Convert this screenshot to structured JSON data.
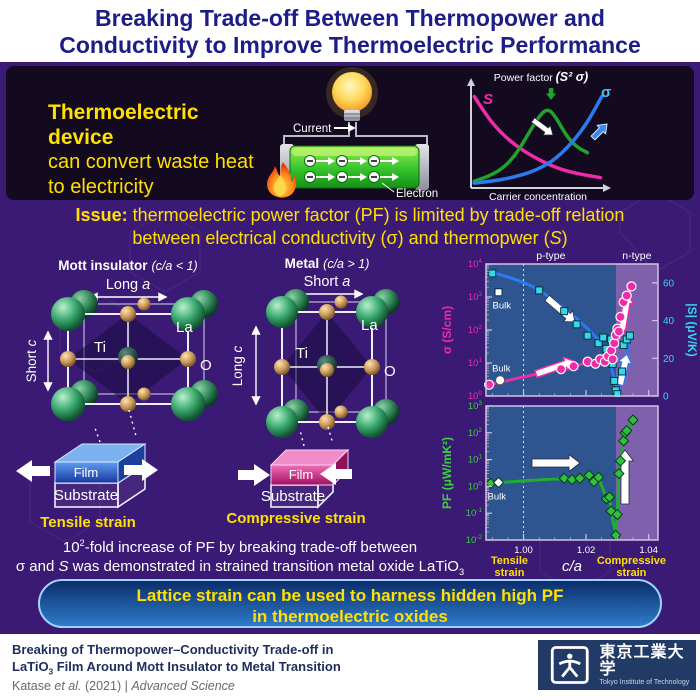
{
  "header": {
    "title_line1": "Breaking Trade-off Between Thermopower and",
    "title_line2": "Conductivity to Improve Thermoelectric Performance"
  },
  "device_panel": {
    "headline_bold": "Thermoelectric device",
    "headline_line2": "can convert waste heat",
    "headline_line3": "to electricity",
    "current_label": "Current",
    "plus_label": "+",
    "electron_label": "Electron"
  },
  "issue": {
    "label_bold": "Issue:",
    "line1_rest": " thermoelectric power factor (PF) is limited by trade-off relation",
    "line2_pre": "between electrical conductivity (σ) and thermopwer (",
    "line2_s": "S",
    "line2_post": ")"
  },
  "crystals": {
    "mott": {
      "title_bold": "Mott insulator",
      "title_paren": "(c/a < 1)",
      "a_pre": "Long ",
      "a_it": "a",
      "c_pre": "Short ",
      "c_it": "c",
      "la": "La",
      "ti": "Ti",
      "o": "O"
    },
    "metal": {
      "title_bold": "Metal",
      "title_paren": "(c/a > 1)",
      "a_pre": "Short ",
      "a_it": "a",
      "c_pre": "Long ",
      "c_it": "c",
      "la": "La",
      "ti": "Ti",
      "o": "O"
    }
  },
  "films": {
    "tensile": {
      "film": "Film",
      "substrate": "Substrate",
      "caption": "Tensile strain"
    },
    "compressive": {
      "film": "Film",
      "substrate": "Substrate",
      "caption": "Compressive strain"
    }
  },
  "pf_statement": {
    "l1_base": "10",
    "l1_sup": "2",
    "l1_rest": "-fold increase of PF by breaking trade-off between",
    "l2_pre": "σ and ",
    "l2_s": "S",
    "l2_mid": " was demonstrated in strained transition metal oxide LaTiO",
    "l2_sub": "3"
  },
  "banner": {
    "line1": "Lattice strain can be used to harness hidden high PF",
    "line2": "in thermoelectric oxides"
  },
  "footer": {
    "paper_line1": "Breaking of Thermopower–Conductivity Trade-off in",
    "paper_line2_pre": "LaTiO",
    "paper_line2_sub": "3",
    "paper_line2_post": " Film Around Mott Insulator to Metal Transition",
    "citation_1": "Katase ",
    "citation_2": "et al.",
    "citation_3": " (2021) | ",
    "citation_4": "Advanced Science",
    "logo_kanji": "東京工業大学",
    "logo_english": "Tokyo Institute of Technology"
  },
  "colors": {
    "accent_yellow": "#ffe000",
    "navy_title": "#1d1d87",
    "purple_bg": "#3b1a75",
    "dark_panel": "#130a20",
    "magenta": "#f02ba8",
    "cyan": "#35d8e8",
    "green": "#2fc040",
    "blue": "#2b7bf0",
    "p_region": "#2e5590",
    "n_region": "#7e60ad"
  },
  "chart_data": [
    {
      "id": "concept",
      "type": "line",
      "title_pre": "Power factor ",
      "title_bold": "(S² σ)",
      "xlabel": "Carrier concentration",
      "s_label": "S",
      "sigma_label": "σ",
      "series": [
        {
          "name": "S",
          "color": "#f02ba8",
          "points": [
            [
              1,
              95
            ],
            [
              10,
              75
            ],
            [
              20,
              58
            ],
            [
              30,
              45
            ],
            [
              40,
              35
            ],
            [
              50,
              27
            ],
            [
              60,
              20
            ],
            [
              72,
              14
            ],
            [
              85,
              10
            ],
            [
              98,
              7
            ]
          ]
        },
        {
          "name": "Power factor",
          "color": "#1fa32a",
          "points": [
            [
              1,
              3
            ],
            [
              12,
              8
            ],
            [
              24,
              18
            ],
            [
              34,
              34
            ],
            [
              44,
              58
            ],
            [
              52,
              76
            ],
            [
              58,
              82
            ],
            [
              64,
              72
            ],
            [
              72,
              52
            ],
            [
              80,
              40
            ],
            [
              88,
              34
            ]
          ]
        },
        {
          "name": "σ",
          "color": "#2b7bf0",
          "points": [
            [
              1,
              1
            ],
            [
              15,
              3
            ],
            [
              30,
              7
            ],
            [
              45,
              13
            ],
            [
              58,
              22
            ],
            [
              68,
              33
            ],
            [
              78,
              48
            ],
            [
              87,
              65
            ],
            [
              94,
              82
            ],
            [
              99,
              95
            ]
          ]
        }
      ]
    },
    {
      "id": "sigma_s_vs_ca",
      "type": "scatter",
      "x_range": [
        0.988,
        1.043
      ],
      "x_ticks": [
        1.0,
        1.02,
        1.04
      ],
      "boundary_ca": 1.0295,
      "dotted_ca": 1.0,
      "region_labels": {
        "p": "p-type",
        "n": "n-type"
      },
      "left_axis": {
        "label": "σ (S/cm)",
        "scale": "log",
        "exp_range": [
          0,
          4
        ],
        "color": "#f02ba8"
      },
      "right_axis": {
        "label": "|S| (μV/K)",
        "range": [
          0,
          70
        ],
        "ticks": [
          0,
          20,
          40,
          60
        ],
        "color": "#35d8e8"
      },
      "bulk_label": "Bulk",
      "sigma_series": {
        "name": "σ",
        "marker": "circle",
        "color": "#f02ba8",
        "bulk": [
          0.9925,
          3
        ],
        "points": [
          [
            0.989,
            2.2
          ],
          [
            1.012,
            6.5
          ],
          [
            1.016,
            8
          ],
          [
            1.0205,
            11
          ],
          [
            1.023,
            9.5
          ],
          [
            1.0245,
            13
          ],
          [
            1.026,
            11
          ],
          [
            1.027,
            16
          ],
          [
            1.028,
            24
          ],
          [
            1.0285,
            13
          ],
          [
            1.029,
            40
          ],
          [
            1.0295,
            70
          ],
          [
            1.03,
            110
          ],
          [
            1.0305,
            90
          ],
          [
            1.031,
            250
          ],
          [
            1.032,
            700
          ],
          [
            1.033,
            1100
          ],
          [
            1.0345,
            2100
          ]
        ],
        "trend": [
          [
            0.988,
            2.1
          ],
          [
            1.0,
            3.8
          ],
          [
            1.01,
            6
          ],
          [
            1.018,
            9
          ],
          [
            1.024,
            12
          ],
          [
            1.027,
            18
          ],
          [
            1.0285,
            35
          ],
          [
            1.0295,
            75
          ],
          [
            1.0305,
            160
          ],
          [
            1.0315,
            350
          ],
          [
            1.0325,
            800
          ],
          [
            1.034,
            1800
          ],
          [
            1.035,
            2400
          ]
        ]
      },
      "s_series": {
        "name": "|S|",
        "marker": "square",
        "color": "#35d8e8",
        "bulk": [
          0.992,
          55
        ],
        "points": [
          [
            0.99,
            65
          ],
          [
            1.005,
            56
          ],
          [
            1.013,
            45
          ],
          [
            1.017,
            38
          ],
          [
            1.0205,
            32
          ],
          [
            1.024,
            28
          ],
          [
            1.0255,
            31
          ],
          [
            1.0265,
            25
          ],
          [
            1.0275,
            21
          ],
          [
            1.028,
            30
          ],
          [
            1.0285,
            17
          ],
          [
            1.029,
            8
          ],
          [
            1.0295,
            3
          ],
          [
            1.03,
            1
          ],
          [
            1.0315,
            13
          ],
          [
            1.032,
            27
          ],
          [
            1.033,
            30
          ],
          [
            1.034,
            32
          ]
        ],
        "trend": [
          [
            0.989,
            66
          ],
          [
            1.0,
            61
          ],
          [
            1.008,
            53
          ],
          [
            1.015,
            44
          ],
          [
            1.021,
            35
          ],
          [
            1.025,
            28
          ],
          [
            1.028,
            17
          ],
          [
            1.0295,
            4
          ],
          [
            1.0302,
            0.5
          ]
        ],
        "trend2": [
          [
            1.0305,
            1
          ],
          [
            1.032,
            14
          ],
          [
            1.034,
            30
          ]
        ]
      }
    },
    {
      "id": "pf_vs_ca",
      "type": "scatter",
      "x_range": [
        0.988,
        1.043
      ],
      "x_ticks": [
        1.0,
        1.02,
        1.04
      ],
      "boundary_ca": 1.0295,
      "dotted_ca": 1.0,
      "y_axis": {
        "label": "PF (μW/mK²)",
        "scale": "log",
        "exp_range": [
          -2,
          3
        ],
        "color": "#39d23c"
      },
      "bulk_label": "Bulk",
      "pf_series": {
        "name": "PF",
        "marker": "diamond",
        "color": "#2fc040",
        "bulk": [
          0.992,
          1.4
        ],
        "points": [
          [
            0.9895,
            1.3
          ],
          [
            1.013,
            2.0
          ],
          [
            1.0155,
            1.8
          ],
          [
            1.018,
            2.0
          ],
          [
            1.021,
            2.6
          ],
          [
            1.0225,
            1.5
          ],
          [
            1.024,
            2.2
          ],
          [
            1.0265,
            0.35
          ],
          [
            1.0275,
            0.4
          ],
          [
            1.028,
            0.12
          ],
          [
            1.0295,
            0.015
          ],
          [
            1.03,
            0.09
          ],
          [
            1.0305,
            3
          ],
          [
            1.031,
            9
          ],
          [
            1.032,
            50
          ],
          [
            1.0325,
            100
          ],
          [
            1.033,
            120
          ],
          [
            1.035,
            300
          ]
        ]
      },
      "captions": {
        "left_l1": "Tensile",
        "left_l2": "strain",
        "center": "c/a",
        "right_l1": "Compressive",
        "right_l2": "strain"
      }
    }
  ]
}
